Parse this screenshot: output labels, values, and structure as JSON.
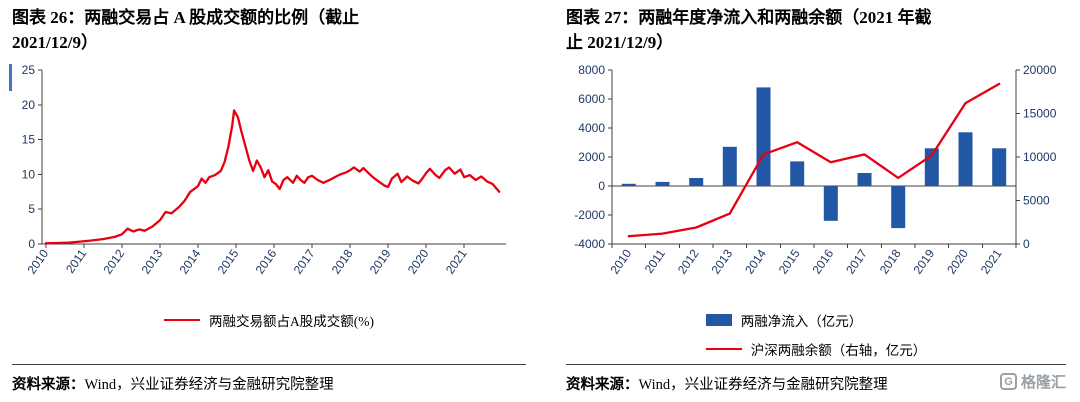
{
  "source": {
    "label": "资料来源：",
    "text": "Wind，兴业证券经济与金融研究院整理"
  },
  "footer": {
    "logo_icon": "G",
    "logo_text": "格隆汇"
  },
  "style": {
    "axis_text_color": "#1f3864",
    "axis_line_color": "#404040",
    "accent_blue_marker": "#4472c4"
  },
  "chart_data": [
    {
      "type": "line",
      "title": "图表 26：两融交易占 A 股成交额的比例（截止 2021/12/9）",
      "title_lines": [
        "图表 26：两融交易占 A 股成交额的比例（截止",
        "2021/12/9）"
      ],
      "xlim": [
        2009.9,
        2022.1
      ],
      "ylim": [
        0,
        25
      ],
      "yticks": [
        0,
        5,
        10,
        15,
        20,
        25
      ],
      "xticks": [
        2010,
        2011,
        2012,
        2013,
        2014,
        2015,
        2016,
        2017,
        2018,
        2019,
        2020,
        2021
      ],
      "grid": false,
      "legend_position": "bottom",
      "series": [
        {
          "name": "两融交易额占A股成交额(%)",
          "color": "#e60012",
          "x": [
            2010.0,
            2010.3,
            2010.6,
            2010.9,
            2011.2,
            2011.5,
            2011.8,
            2012.0,
            2012.15,
            2012.3,
            2012.45,
            2012.6,
            2012.8,
            2013.0,
            2013.15,
            2013.3,
            2013.5,
            2013.65,
            2013.8,
            2014.0,
            2014.1,
            2014.2,
            2014.3,
            2014.45,
            2014.6,
            2014.7,
            2014.8,
            2014.9,
            2014.95,
            2015.05,
            2015.15,
            2015.25,
            2015.35,
            2015.45,
            2015.55,
            2015.65,
            2015.75,
            2015.85,
            2015.95,
            2016.05,
            2016.15,
            2016.25,
            2016.35,
            2016.5,
            2016.6,
            2016.7,
            2016.8,
            2016.9,
            2017.0,
            2017.15,
            2017.3,
            2017.5,
            2017.7,
            2017.9,
            2018.0,
            2018.1,
            2018.25,
            2018.35,
            2018.5,
            2018.6,
            2018.75,
            2018.9,
            2019.0,
            2019.1,
            2019.25,
            2019.35,
            2019.5,
            2019.65,
            2019.8,
            2019.9,
            2020.0,
            2020.1,
            2020.25,
            2020.35,
            2020.5,
            2020.6,
            2020.75,
            2020.9,
            2021.0,
            2021.15,
            2021.3,
            2021.45,
            2021.6,
            2021.75,
            2021.92
          ],
          "y": [
            0.1,
            0.15,
            0.2,
            0.35,
            0.5,
            0.7,
            1.0,
            1.4,
            2.2,
            1.8,
            2.1,
            1.9,
            2.5,
            3.4,
            4.6,
            4.4,
            5.3,
            6.2,
            7.5,
            8.3,
            9.4,
            8.8,
            9.6,
            9.9,
            10.5,
            11.8,
            14.0,
            17.0,
            19.2,
            18.2,
            16.0,
            14.0,
            12.0,
            10.5,
            12.0,
            11.0,
            9.6,
            10.6,
            9.0,
            8.6,
            7.9,
            9.2,
            9.6,
            8.8,
            9.8,
            9.2,
            8.8,
            9.6,
            9.8,
            9.2,
            8.8,
            9.3,
            9.9,
            10.3,
            10.6,
            11.0,
            10.4,
            10.9,
            10.1,
            9.6,
            9.0,
            8.4,
            8.2,
            9.4,
            10.1,
            8.9,
            9.7,
            9.1,
            8.7,
            9.4,
            10.2,
            10.8,
            9.9,
            9.5,
            10.6,
            11.0,
            10.1,
            10.7,
            9.6,
            9.9,
            9.2,
            9.7,
            9.0,
            8.6,
            7.5
          ]
        }
      ]
    },
    {
      "type": "bar+line",
      "title": "图表 27：两融年度净流入和两融余额（2021 年截止 2021/12/9）",
      "title_lines": [
        "图表 27：两融年度净流入和两融余额（2021 年截",
        "止 2021/12/9）"
      ],
      "categories": [
        2010,
        2011,
        2012,
        2013,
        2014,
        2015,
        2016,
        2017,
        2018,
        2019,
        2020,
        2021
      ],
      "ylim_left": [
        -4000,
        8000
      ],
      "ylim_right": [
        0,
        20000
      ],
      "yticks_left": [
        -4000,
        -2000,
        0,
        2000,
        4000,
        6000,
        8000
      ],
      "yticks_right": [
        0,
        5000,
        10000,
        15000,
        20000
      ],
      "grid": false,
      "legend_position": "bottom",
      "series": [
        {
          "name": "两融净流入（亿元）",
          "type": "bar",
          "axis": "left",
          "color": "#2157a4",
          "values": [
            150,
            280,
            550,
            2700,
            6800,
            1700,
            -2400,
            900,
            -2900,
            2600,
            3700,
            2600
          ]
        },
        {
          "name": "沪深两融余额（右轴，亿元）",
          "type": "line",
          "axis": "right",
          "color": "#e60012",
          "values": [
            900,
            1200,
            1900,
            3500,
            10300,
            11700,
            9400,
            10300,
            7600,
            10200,
            16200,
            18400
          ]
        }
      ]
    }
  ]
}
